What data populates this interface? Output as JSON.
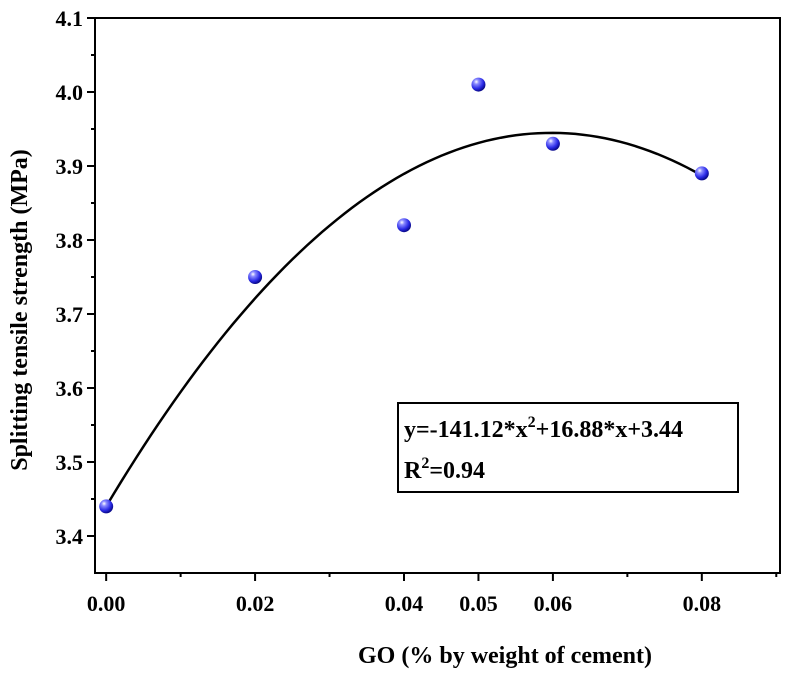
{
  "chart_data": {
    "type": "scatter",
    "xlabel": "GO (% by weight of cement)",
    "ylabel": "Splitting tensile strength (MPa)",
    "xlim": [
      -0.0015,
      0.0905
    ],
    "ylim": [
      3.35,
      4.1
    ],
    "x_ticks": [
      0.0,
      0.02,
      0.04,
      0.05,
      0.06,
      0.08
    ],
    "x_tick_labels": [
      "0.00",
      "0.02",
      "0.04",
      "0.05",
      "0.06",
      "0.08"
    ],
    "y_ticks": [
      3.4,
      3.5,
      3.6,
      3.7,
      3.8,
      3.9,
      4.0,
      4.1
    ],
    "y_tick_labels": [
      "3.4",
      "3.5",
      "3.6",
      "3.7",
      "3.8",
      "3.9",
      "4.0",
      "4.1"
    ],
    "points": [
      {
        "x": 0.0,
        "y": 3.44
      },
      {
        "x": 0.02,
        "y": 3.75
      },
      {
        "x": 0.04,
        "y": 3.82
      },
      {
        "x": 0.05,
        "y": 4.01
      },
      {
        "x": 0.06,
        "y": 3.93
      },
      {
        "x": 0.08,
        "y": 3.89
      }
    ],
    "fit": {
      "type": "quadratic",
      "a": -141.12,
      "b": 16.88,
      "c": 3.44,
      "x_range": [
        0.0,
        0.08
      ]
    },
    "annotation": {
      "equation_prefix": "y=-141.12*x",
      "equation_sup": "2",
      "equation_suffix": "+16.88*x+3.44",
      "r2_prefix": "R",
      "r2_sup": "2",
      "r2_suffix": "=0.94"
    },
    "marker_color": "#2a2ae6",
    "line_color": "#000000",
    "grid": false,
    "legend": "none"
  }
}
